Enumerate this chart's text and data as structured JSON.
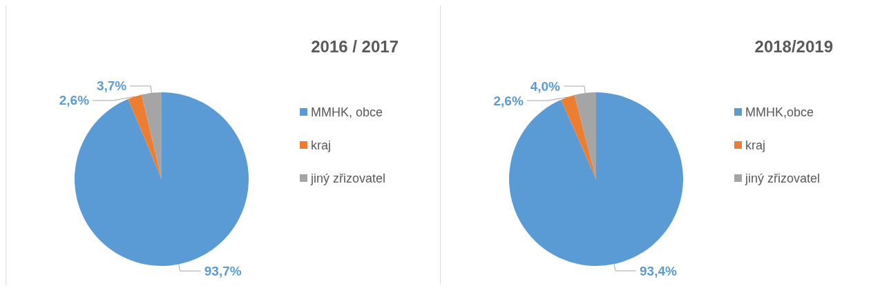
{
  "chart_data": [
    {
      "type": "pie",
      "title": "2016 / 2017",
      "categories": [
        "MMHK, obce",
        "kraj",
        "jiný zřizovatel"
      ],
      "values": [
        93.7,
        2.6,
        3.7
      ],
      "value_labels": [
        "93,7%",
        "2,6%",
        "3,7%"
      ],
      "colors": [
        "#5b9bd5",
        "#ed7d31",
        "#a5a5a5"
      ],
      "legend": "right"
    },
    {
      "type": "pie",
      "title": "2018/2019",
      "categories": [
        "MMHK,obce",
        "kraj",
        "jiný zřizovatel"
      ],
      "values": [
        93.4,
        2.6,
        4.0
      ],
      "value_labels": [
        "93,4%",
        "2,6%",
        "4,0%"
      ],
      "colors": [
        "#5b9bd5",
        "#ed7d31",
        "#a5a5a5"
      ],
      "legend": "right"
    }
  ]
}
